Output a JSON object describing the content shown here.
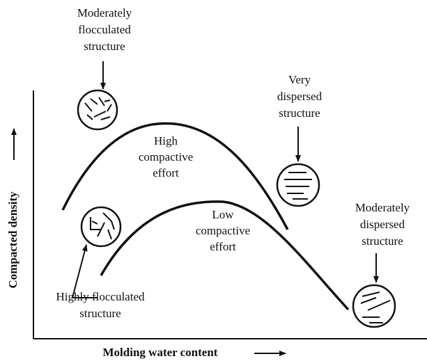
{
  "axes": {
    "x_label": "Molding water content",
    "y_label": "Compacted density"
  },
  "curves": [
    {
      "label": [
        "High",
        "compactive",
        "effort"
      ]
    },
    {
      "label": [
        "Low",
        "compactive",
        "effort"
      ]
    }
  ],
  "structures": [
    {
      "label": [
        "Moderately",
        "flocculated",
        "structure"
      ]
    },
    {
      "label": [
        "Very",
        "dispersed",
        "structure"
      ]
    },
    {
      "label": [
        "Moderately",
        "dispersed",
        "structure"
      ]
    },
    {
      "label": [
        "Highly flocculated",
        "structure"
      ]
    }
  ]
}
